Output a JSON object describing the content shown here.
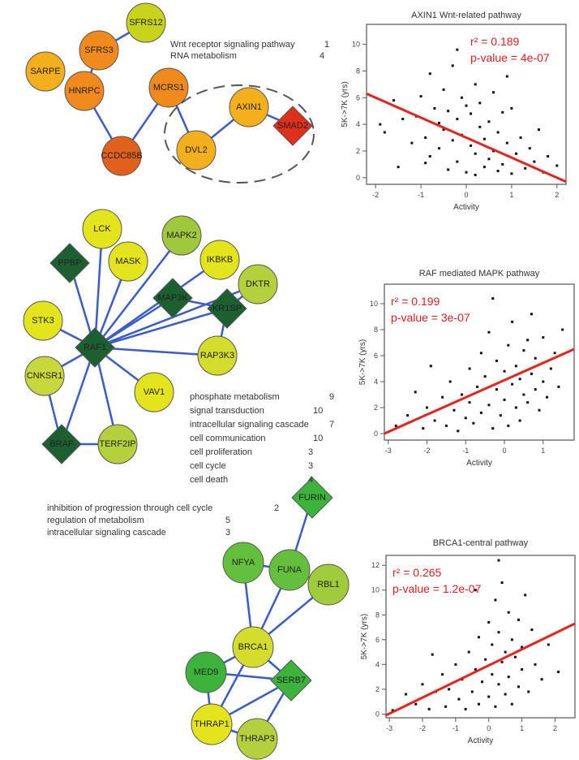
{
  "networks": [
    {
      "nodes": [
        {
          "id": "SFRS12",
          "label": "SFRS12",
          "shape": "circle",
          "color": "#c8d41c"
        },
        {
          "id": "SFRS3",
          "label": "SFRS3",
          "shape": "circle",
          "color": "#f08a1c"
        },
        {
          "id": "SARPE",
          "label": "SARPE",
          "shape": "circle",
          "color": "#f4b01c"
        },
        {
          "id": "HNRPC",
          "label": "HNRPC",
          "shape": "circle",
          "color": "#f08a1c"
        },
        {
          "id": "MCRS1",
          "label": "MCRS1",
          "shape": "circle",
          "color": "#f08a1c"
        },
        {
          "id": "CCDC85B",
          "label": "CCDC85B",
          "shape": "circle",
          "color": "#e0601c"
        },
        {
          "id": "AXIN1",
          "label": "AXIN1",
          "shape": "circle",
          "color": "#f4b01c"
        },
        {
          "id": "DVL2",
          "label": "DVL2",
          "shape": "circle",
          "color": "#f4b01c"
        },
        {
          "id": "SMAD2",
          "label": "SMAD2",
          "shape": "diamond",
          "color": "#e0301c"
        }
      ],
      "edges": [
        [
          "SFRS12",
          "SFRS3"
        ],
        [
          "SFRS3",
          "HNRPC"
        ],
        [
          "HNRPC",
          "CCDC85B"
        ],
        [
          "CCDC85B",
          "MCRS1"
        ],
        [
          "MCRS1",
          "DVL2"
        ],
        [
          "DVL2",
          "AXIN1"
        ],
        [
          "AXIN1",
          "SMAD2"
        ]
      ],
      "annotations": [
        {
          "text": "Wnt receptor signaling pathway",
          "count": "1"
        },
        {
          "text": "RNA metabolism",
          "count": "4"
        }
      ]
    },
    {
      "nodes": [
        {
          "id": "LCK",
          "label": "LCK",
          "shape": "circle",
          "color": "#e4e41c"
        },
        {
          "id": "MAPK2",
          "label": "MAPK2",
          "shape": "circle",
          "color": "#a0c83c"
        },
        {
          "id": "PPBP",
          "label": "PPBP",
          "shape": "diamond",
          "color": "#1c6030"
        },
        {
          "id": "MASK",
          "label": "MASK",
          "shape": "circle",
          "color": "#e4e41c"
        },
        {
          "id": "IKBKB",
          "label": "IKBKB",
          "shape": "circle",
          "color": "#e4e41c"
        },
        {
          "id": "DKTR",
          "label": "DKTR",
          "shape": "circle",
          "color": "#b4d03c"
        },
        {
          "id": "MAP3K",
          "label": "MAP3K",
          "shape": "diamond",
          "color": "#1c6030"
        },
        {
          "id": "KR1SP",
          "label": "KR1SP",
          "shape": "diamond",
          "color": "#1c6030"
        },
        {
          "id": "STK3",
          "label": "STK3",
          "shape": "circle",
          "color": "#e4e41c"
        },
        {
          "id": "RAF1",
          "label": "RAF1",
          "shape": "diamond",
          "color": "#1c6030"
        },
        {
          "id": "RAP3K3",
          "label": "RAP3K3",
          "shape": "circle",
          "color": "#d4dc2c"
        },
        {
          "id": "CNKSR1",
          "label": "CNKSR1",
          "shape": "circle",
          "color": "#c8d83c"
        },
        {
          "id": "VAV1",
          "label": "VAV1",
          "shape": "circle",
          "color": "#e4e41c"
        },
        {
          "id": "BRAF",
          "label": "BRAF",
          "shape": "diamond",
          "color": "#1c6030"
        },
        {
          "id": "TERF2IP",
          "label": "TERF2IP",
          "shape": "circle",
          "color": "#b4d03c"
        }
      ],
      "edges": [
        [
          "RAF1",
          "LCK"
        ],
        [
          "RAF1",
          "MAPK2"
        ],
        [
          "RAF1",
          "PPBP"
        ],
        [
          "RAF1",
          "MASK"
        ],
        [
          "RAF1",
          "IKBKB"
        ],
        [
          "RAF1",
          "DKTR"
        ],
        [
          "RAF1",
          "MAP3K"
        ],
        [
          "RAF1",
          "KR1SP"
        ],
        [
          "RAF1",
          "STK3"
        ],
        [
          "RAF1",
          "RAP3K3"
        ],
        [
          "RAF1",
          "CNKSR1"
        ],
        [
          "RAF1",
          "VAV1"
        ],
        [
          "RAF1",
          "BRAF"
        ],
        [
          "RAF1",
          "TERF2IP"
        ],
        [
          "MAP3K",
          "KR1SP"
        ],
        [
          "KR1SP",
          "DKTR"
        ],
        [
          "KR1SP",
          "RAP3K3"
        ],
        [
          "CNKSR1",
          "BRAF"
        ],
        [
          "BRAF",
          "TERF2IP"
        ]
      ],
      "annotations": [
        {
          "text": "phosphate metabolism",
          "count": "9"
        },
        {
          "text": "signal transduction",
          "count": "10"
        },
        {
          "text": "intracellular signaling cascade",
          "count": "7"
        },
        {
          "text": "cell communication",
          "count": "10"
        },
        {
          "text": "cell proliferation",
          "count": "3"
        },
        {
          "text": "cell cycle",
          "count": "3"
        },
        {
          "text": "cell death",
          "count": "4"
        }
      ]
    },
    {
      "nodes": [
        {
          "id": "FURIN",
          "label": "FURIN",
          "shape": "diamond",
          "color": "#3cb43c"
        },
        {
          "id": "NFYA",
          "label": "NFYA",
          "shape": "circle",
          "color": "#64c03c"
        },
        {
          "id": "FUNA",
          "label": "FUNA",
          "shape": "circle",
          "color": "#64c03c"
        },
        {
          "id": "RBL1",
          "label": "RBL1",
          "shape": "circle",
          "color": "#a0cc3c"
        },
        {
          "id": "BRCA1",
          "label": "BRCA1",
          "shape": "circle",
          "color": "#d4dc2c"
        },
        {
          "id": "MED9",
          "label": "MED9",
          "shape": "circle",
          "color": "#3cb43c"
        },
        {
          "id": "SERB7",
          "label": "SERB7",
          "shape": "diamond",
          "color": "#3cb43c"
        },
        {
          "id": "THRAP1",
          "label": "THRAP1",
          "shape": "circle",
          "color": "#e4e41c"
        },
        {
          "id": "THRAP3",
          "label": "THRAP3",
          "shape": "circle",
          "color": "#b4d03c"
        }
      ],
      "edges": [
        [
          "FURIN",
          "FUNA"
        ],
        [
          "NFYA",
          "FUNA"
        ],
        [
          "FUNA",
          "RBL1"
        ],
        [
          "NFYA",
          "BRCA1"
        ],
        [
          "FUNA",
          "BRCA1"
        ],
        [
          "RBL1",
          "BRCA1"
        ],
        [
          "BRCA1",
          "MED9"
        ],
        [
          "BRCA1",
          "SERB7"
        ],
        [
          "BRCA1",
          "THRAP1"
        ],
        [
          "MED9",
          "SERB7"
        ],
        [
          "MED9",
          "THRAP1"
        ],
        [
          "SERB7",
          "THRAP1"
        ],
        [
          "SERB7",
          "THRAP3"
        ],
        [
          "THRAP1",
          "THRAP3"
        ]
      ],
      "annotations": [
        {
          "text": "inhibition of progression through cell cycle",
          "count": "2"
        },
        {
          "text": "regulation of metabolism",
          "count": "5"
        },
        {
          "text": "intracellular signaling cascade",
          "count": "3"
        }
      ]
    }
  ],
  "chart_data": [
    {
      "type": "scatter",
      "title": "AXIN1 Wnt-related pathway",
      "xlabel": "Activity",
      "ylabel": "5K->7K (yrs)",
      "xlim": [
        -2.2,
        2.2
      ],
      "ylim": [
        -0.5,
        11.5
      ],
      "xticks": [
        "-2",
        "-1",
        "0",
        "1",
        "2"
      ],
      "yticks": [
        "0",
        "2",
        "4",
        "6",
        "8",
        "10"
      ],
      "stats": {
        "r2": "r² = 0.189",
        "pvalue": "p-value = 4e-07"
      },
      "fit": {
        "x": [
          -2.2,
          2.2
        ],
        "y": [
          6.3,
          -0.3
        ]
      },
      "points": [
        [
          -1.8,
          3.4
        ],
        [
          -1.6,
          5.8
        ],
        [
          -1.4,
          4.4
        ],
        [
          -1.2,
          2.6
        ],
        [
          -1.1,
          4.6
        ],
        [
          -1.0,
          6.1
        ],
        [
          -0.9,
          3.0
        ],
        [
          -0.8,
          7.8
        ],
        [
          -0.8,
          1.6
        ],
        [
          -0.7,
          5.2
        ],
        [
          -0.6,
          4.1
        ],
        [
          -0.6,
          2.2
        ],
        [
          -0.5,
          6.6
        ],
        [
          -0.5,
          3.6
        ],
        [
          -0.4,
          0.6
        ],
        [
          -0.4,
          5.0
        ],
        [
          -0.3,
          8.4
        ],
        [
          -0.3,
          2.8
        ],
        [
          -0.2,
          4.4
        ],
        [
          -0.2,
          1.2
        ],
        [
          -0.1,
          6.0
        ],
        [
          -0.1,
          3.2
        ],
        [
          0.0,
          5.4
        ],
        [
          0.0,
          0.4
        ],
        [
          0.1,
          2.4
        ],
        [
          0.1,
          4.8
        ],
        [
          0.2,
          7.0
        ],
        [
          0.2,
          1.8
        ],
        [
          0.3,
          3.8
        ],
        [
          0.3,
          5.6
        ],
        [
          0.4,
          0.8
        ],
        [
          0.4,
          2.9
        ],
        [
          0.5,
          4.2
        ],
        [
          0.5,
          1.4
        ],
        [
          0.6,
          6.4
        ],
        [
          0.6,
          2.0
        ],
        [
          0.7,
          3.4
        ],
        [
          0.7,
          0.5
        ],
        [
          0.8,
          4.9
        ],
        [
          0.8,
          1.0
        ],
        [
          0.9,
          2.6
        ],
        [
          1.0,
          5.2
        ],
        [
          1.0,
          0.3
        ],
        [
          1.1,
          1.8
        ],
        [
          1.2,
          3.0
        ],
        [
          1.3,
          0.7
        ],
        [
          1.4,
          2.2
        ],
        [
          1.5,
          1.2
        ],
        [
          1.6,
          3.6
        ],
        [
          1.7,
          0.4
        ],
        [
          1.8,
          1.6
        ],
        [
          2.0,
          0.9
        ],
        [
          -1.5,
          0.8
        ],
        [
          -0.9,
          1.1
        ],
        [
          0.2,
          0.2
        ],
        [
          -1.9,
          4.0
        ],
        [
          0.9,
          7.6
        ],
        [
          -0.2,
          9.6
        ]
      ]
    },
    {
      "type": "scatter",
      "title": "RAF mediated MAPK pathway",
      "xlabel": "Activity",
      "ylabel": "5K->7K (yrs)",
      "xlim": [
        -3.1,
        1.8
      ],
      "ylim": [
        -0.5,
        11.5
      ],
      "xticks": [
        "-3",
        "-2",
        "-1",
        "0",
        "1"
      ],
      "yticks": [
        "0",
        "2",
        "4",
        "6",
        "8",
        "10"
      ],
      "stats": {
        "r2": "r² = 0.199",
        "pvalue": "p-value = 3e-07"
      },
      "fit": {
        "x": [
          -3.1,
          1.8
        ],
        "y": [
          0.0,
          6.5
        ]
      },
      "points": [
        [
          -2.8,
          0.6
        ],
        [
          -2.5,
          1.4
        ],
        [
          -2.3,
          3.2
        ],
        [
          -2.1,
          0.4
        ],
        [
          -2.0,
          2.0
        ],
        [
          -1.8,
          1.0
        ],
        [
          -1.6,
          2.8
        ],
        [
          -1.5,
          0.6
        ],
        [
          -1.4,
          4.0
        ],
        [
          -1.3,
          1.8
        ],
        [
          -1.2,
          0.2
        ],
        [
          -1.1,
          3.0
        ],
        [
          -1.0,
          1.2
        ],
        [
          -0.9,
          5.0
        ],
        [
          -0.9,
          2.4
        ],
        [
          -0.8,
          0.8
        ],
        [
          -0.7,
          3.6
        ],
        [
          -0.6,
          6.2
        ],
        [
          -0.6,
          1.6
        ],
        [
          -0.5,
          4.4
        ],
        [
          -0.4,
          2.2
        ],
        [
          -0.4,
          7.8
        ],
        [
          -0.3,
          0.4
        ],
        [
          -0.2,
          3.4
        ],
        [
          -0.2,
          5.6
        ],
        [
          -0.1,
          1.4
        ],
        [
          0.0,
          4.8
        ],
        [
          0.0,
          2.6
        ],
        [
          0.1,
          6.8
        ],
        [
          0.1,
          0.6
        ],
        [
          0.2,
          3.8
        ],
        [
          0.2,
          8.6
        ],
        [
          0.3,
          2.0
        ],
        [
          0.3,
          5.2
        ],
        [
          0.4,
          4.2
        ],
        [
          0.4,
          1.0
        ],
        [
          0.5,
          6.4
        ],
        [
          0.5,
          3.0
        ],
        [
          0.6,
          7.2
        ],
        [
          0.6,
          2.4
        ],
        [
          0.7,
          4.6
        ],
        [
          0.7,
          9.2
        ],
        [
          0.8,
          3.4
        ],
        [
          0.8,
          5.8
        ],
        [
          0.9,
          1.8
        ],
        [
          1.0,
          4.0
        ],
        [
          1.0,
          7.4
        ],
        [
          1.1,
          2.8
        ],
        [
          1.2,
          5.0
        ],
        [
          1.3,
          6.2
        ],
        [
          1.4,
          3.6
        ],
        [
          1.5,
          8.0
        ],
        [
          -1.9,
          5.2
        ],
        [
          -0.3,
          10.4
        ]
      ]
    },
    {
      "type": "scatter",
      "title": "BRCA1-central pathway",
      "xlabel": "Activity",
      "ylabel": "5K->7K (yrs)",
      "xlim": [
        -3.1,
        2.6
      ],
      "ylim": [
        -0.3,
        12.8
      ],
      "xticks": [
        "-3",
        "-2",
        "-1",
        "0",
        "1",
        "2"
      ],
      "yticks": [
        "0",
        "2",
        "4",
        "6",
        "8",
        "10",
        "12"
      ],
      "stats": {
        "r2": "r² = 0.265",
        "pvalue": "p-value = 1.2e-07"
      },
      "fit": {
        "x": [
          -3.1,
          2.6
        ],
        "y": [
          -0.1,
          7.3
        ]
      },
      "points": [
        [
          -2.9,
          0.3
        ],
        [
          -2.5,
          1.6
        ],
        [
          -2.2,
          0.8
        ],
        [
          -2.0,
          2.4
        ],
        [
          -1.8,
          0.4
        ],
        [
          -1.6,
          1.8
        ],
        [
          -1.4,
          3.2
        ],
        [
          -1.3,
          0.6
        ],
        [
          -1.2,
          2.0
        ],
        [
          -1.0,
          4.0
        ],
        [
          -0.9,
          1.2
        ],
        [
          -0.8,
          2.8
        ],
        [
          -0.7,
          0.4
        ],
        [
          -0.6,
          5.0
        ],
        [
          -0.5,
          1.8
        ],
        [
          -0.4,
          3.6
        ],
        [
          -0.3,
          6.2
        ],
        [
          -0.3,
          0.8
        ],
        [
          -0.2,
          2.6
        ],
        [
          -0.1,
          4.4
        ],
        [
          0.0,
          7.4
        ],
        [
          0.0,
          1.4
        ],
        [
          0.1,
          3.2
        ],
        [
          0.1,
          5.6
        ],
        [
          0.2,
          9.2
        ],
        [
          0.2,
          0.6
        ],
        [
          0.3,
          2.4
        ],
        [
          0.3,
          6.6
        ],
        [
          0.4,
          4.2
        ],
        [
          0.4,
          10.6
        ],
        [
          0.5,
          1.6
        ],
        [
          0.5,
          5.0
        ],
        [
          0.6,
          3.0
        ],
        [
          0.6,
          8.2
        ],
        [
          0.7,
          6.0
        ],
        [
          0.7,
          0.8
        ],
        [
          0.8,
          4.6
        ],
        [
          0.9,
          2.2
        ],
        [
          0.9,
          7.6
        ],
        [
          1.0,
          5.4
        ],
        [
          1.0,
          3.6
        ],
        [
          1.1,
          9.6
        ],
        [
          1.2,
          1.8
        ],
        [
          1.3,
          6.8
        ],
        [
          1.4,
          4.0
        ],
        [
          1.6,
          2.8
        ],
        [
          1.8,
          5.6
        ],
        [
          2.1,
          3.4
        ],
        [
          -0.4,
          10.0
        ],
        [
          0.3,
          12.4
        ],
        [
          -1.7,
          4.8
        ]
      ]
    }
  ]
}
